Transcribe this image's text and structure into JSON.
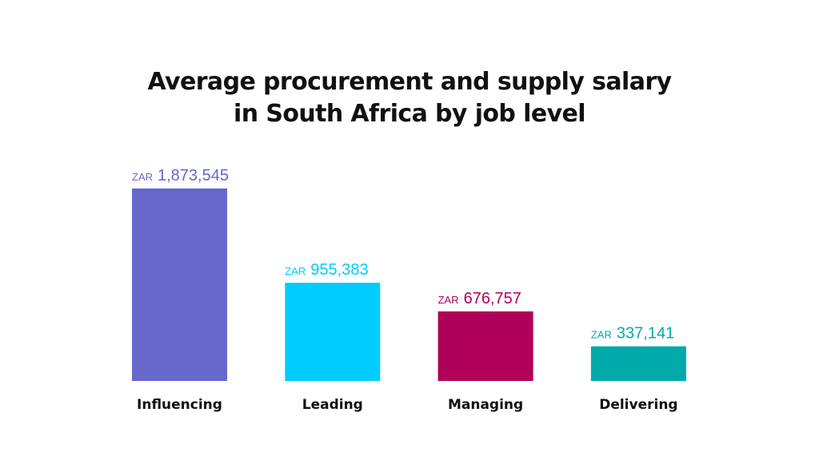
{
  "chart_data": {
    "type": "bar",
    "title": "Average procurement and supply salary in South Africa by job level",
    "title_lines": [
      "Average procurement and supply salary",
      "in South Africa by job level"
    ],
    "categories": [
      "Influencing",
      "Leading",
      "Managing",
      "Delivering"
    ],
    "values": [
      1873545,
      955383,
      676757,
      337141
    ],
    "value_labels": [
      "1,873,545",
      "955,383",
      "676,757",
      "337,141"
    ],
    "currency_prefix": "ZAR",
    "colors": [
      "#6767cc",
      "#00ccff",
      "#b0005a",
      "#00aaaa"
    ],
    "xlabel": "",
    "ylabel": "",
    "ylim": [
      0,
      1873545
    ],
    "grid": false,
    "legend": "none"
  }
}
